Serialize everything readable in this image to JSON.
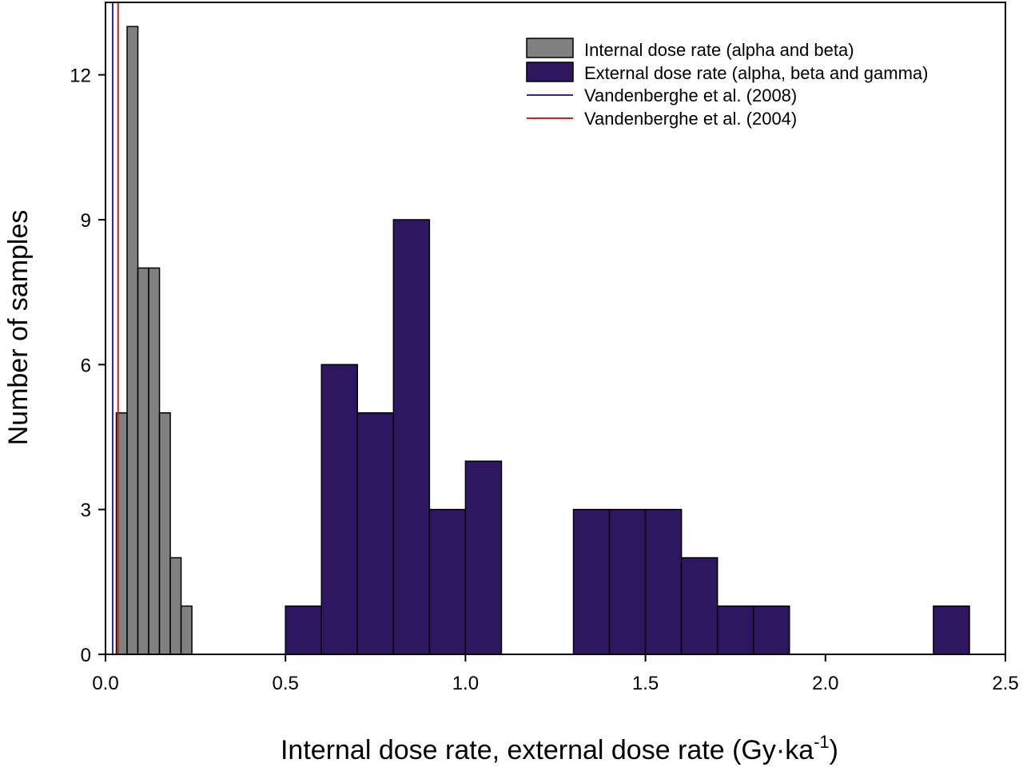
{
  "chart_data": {
    "type": "bar",
    "xlabel": "Internal dose rate, external dose rate (Gy·ka",
    "xlabel_superscript": "-1",
    "xlabel_suffix": ")",
    "ylabel": "Number of samples",
    "xlim": [
      0.0,
      2.5
    ],
    "ylim": [
      0,
      13.5
    ],
    "x_ticks": [
      0.0,
      0.5,
      1.0,
      1.5,
      2.0,
      2.5
    ],
    "x_tick_labels": [
      "0.0",
      "0.5",
      "1.0",
      "1.5",
      "2.0",
      "2.5"
    ],
    "y_ticks": [
      0,
      3,
      6,
      9,
      12
    ],
    "y_tick_labels": [
      "0",
      "3",
      "6",
      "9",
      "12"
    ],
    "grid": false,
    "legend_position": "top-right",
    "series": [
      {
        "name": "Internal dose rate (alpha and beta)",
        "color": "#808080",
        "bins": [
          {
            "x0": 0.03,
            "x1": 0.06,
            "count": 5
          },
          {
            "x0": 0.06,
            "x1": 0.09,
            "count": 13
          },
          {
            "x0": 0.09,
            "x1": 0.12,
            "count": 8
          },
          {
            "x0": 0.12,
            "x1": 0.15,
            "count": 8
          },
          {
            "x0": 0.15,
            "x1": 0.18,
            "count": 5
          },
          {
            "x0": 0.18,
            "x1": 0.21,
            "count": 2
          },
          {
            "x0": 0.21,
            "x1": 0.24,
            "count": 1
          }
        ]
      },
      {
        "name": "External dose rate (alpha, beta and gamma)",
        "color": "#2e1760",
        "bins": [
          {
            "x0": 0.5,
            "x1": 0.6,
            "count": 1
          },
          {
            "x0": 0.6,
            "x1": 0.7,
            "count": 6
          },
          {
            "x0": 0.7,
            "x1": 0.8,
            "count": 5
          },
          {
            "x0": 0.8,
            "x1": 0.9,
            "count": 9
          },
          {
            "x0": 0.9,
            "x1": 1.0,
            "count": 3
          },
          {
            "x0": 1.0,
            "x1": 1.1,
            "count": 4
          },
          {
            "x0": 1.3,
            "x1": 1.4,
            "count": 3
          },
          {
            "x0": 1.4,
            "x1": 1.5,
            "count": 3
          },
          {
            "x0": 1.5,
            "x1": 1.6,
            "count": 3
          },
          {
            "x0": 1.6,
            "x1": 1.7,
            "count": 2
          },
          {
            "x0": 1.7,
            "x1": 1.8,
            "count": 1
          },
          {
            "x0": 1.8,
            "x1": 1.9,
            "count": 1
          },
          {
            "x0": 2.3,
            "x1": 2.4,
            "count": 1
          }
        ]
      }
    ],
    "reference_lines": [
      {
        "name": "Vandenberghe et al. (2008)",
        "x": 0.02,
        "color": "#2a2a9a"
      },
      {
        "name": "Vandenberghe et al. (2004)",
        "x": 0.035,
        "color": "#d42020"
      }
    ]
  }
}
